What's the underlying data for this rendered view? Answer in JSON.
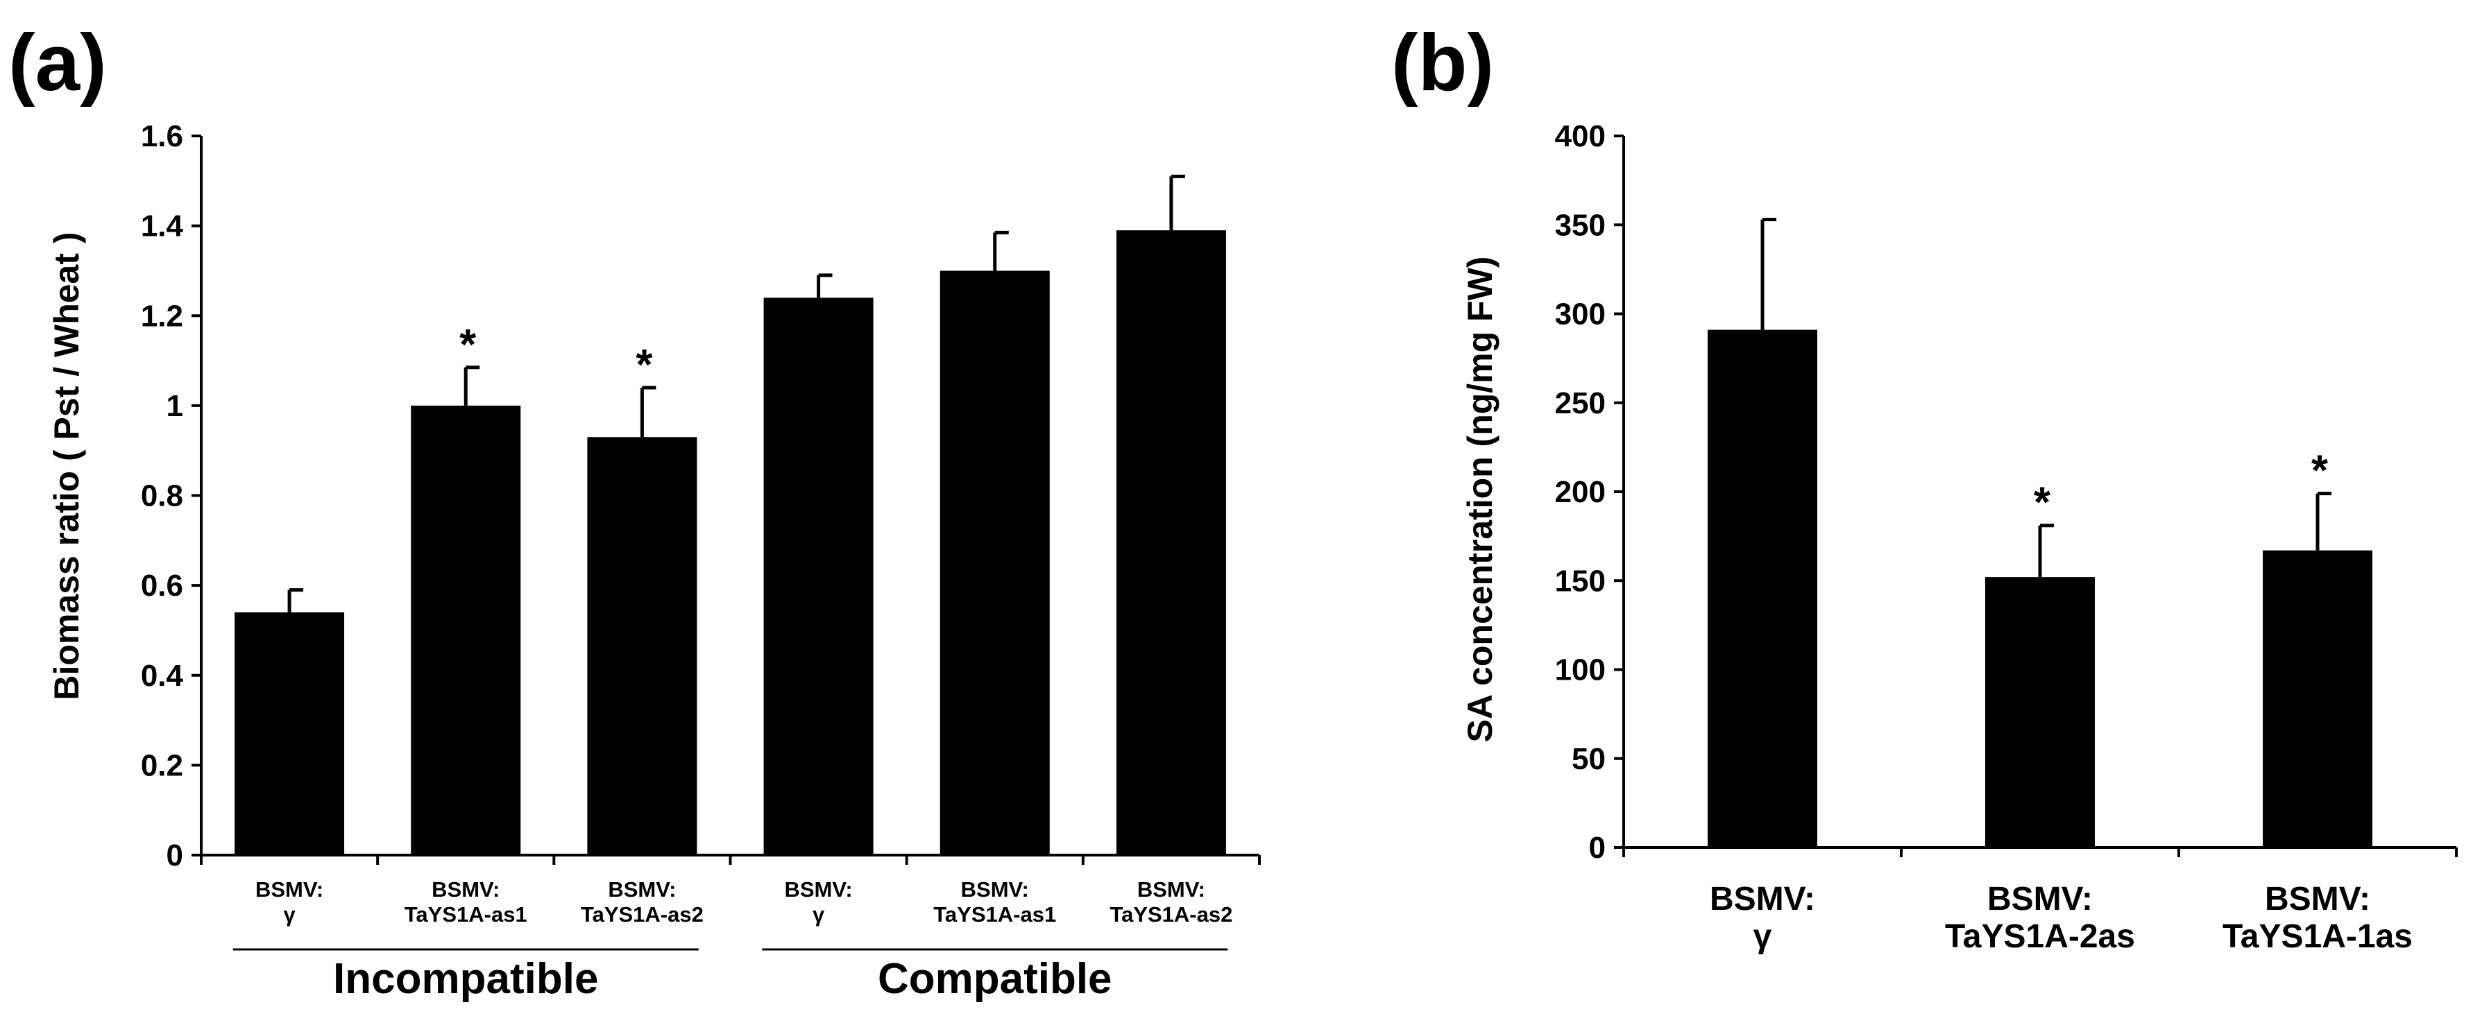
{
  "chart_data": [
    {
      "panel_label": "(a)",
      "type": "bar",
      "ylabel": "Biomass ratio ( Pst / Wheat )",
      "xlabel": "",
      "ylim": [
        0,
        1.6
      ],
      "yticks": [
        "0",
        "0.2",
        "0.4",
        "0.6",
        "0.8",
        "1",
        "1.2",
        "1.4",
        "1.6"
      ],
      "categories": [
        [
          "BSMV:",
          "γ"
        ],
        [
          "BSMV:",
          "TaYS1A-as1"
        ],
        [
          "BSMV:",
          "TaYS1A-as2"
        ],
        [
          "BSMV:",
          "γ"
        ],
        [
          "BSMV:",
          "TaYS1A-as1"
        ],
        [
          "BSMV:",
          "TaYS1A-as2"
        ]
      ],
      "values": [
        0.54,
        1.0,
        0.93,
        1.24,
        1.3,
        1.39
      ],
      "errors": [
        0.05,
        0.085,
        0.11,
        0.05,
        0.085,
        0.12
      ],
      "significance": [
        "",
        "*",
        "*",
        "",
        "",
        ""
      ],
      "groups": [
        {
          "label": "Incompatible",
          "members": [
            0,
            1,
            2
          ]
        },
        {
          "label": "Compatible",
          "members": [
            3,
            4,
            5
          ]
        }
      ]
    },
    {
      "panel_label": "(b)",
      "type": "bar",
      "ylabel": "SA concentration (ng/mg FW)",
      "xlabel": "",
      "ylim": [
        0,
        400
      ],
      "yticks": [
        "0",
        "50",
        "100",
        "150",
        "200",
        "250",
        "300",
        "350",
        "400"
      ],
      "categories": [
        [
          "BSMV:",
          "γ"
        ],
        [
          "BSMV:",
          "TaYS1A-2as"
        ],
        [
          "BSMV:",
          "TaYS1A-1as"
        ]
      ],
      "values": [
        291,
        152,
        167
      ],
      "errors": [
        62,
        29,
        32
      ],
      "significance": [
        "",
        "*",
        "*"
      ]
    }
  ],
  "colors": {
    "bar": "#000000",
    "axis": "#000000",
    "background": "#ffffff"
  }
}
